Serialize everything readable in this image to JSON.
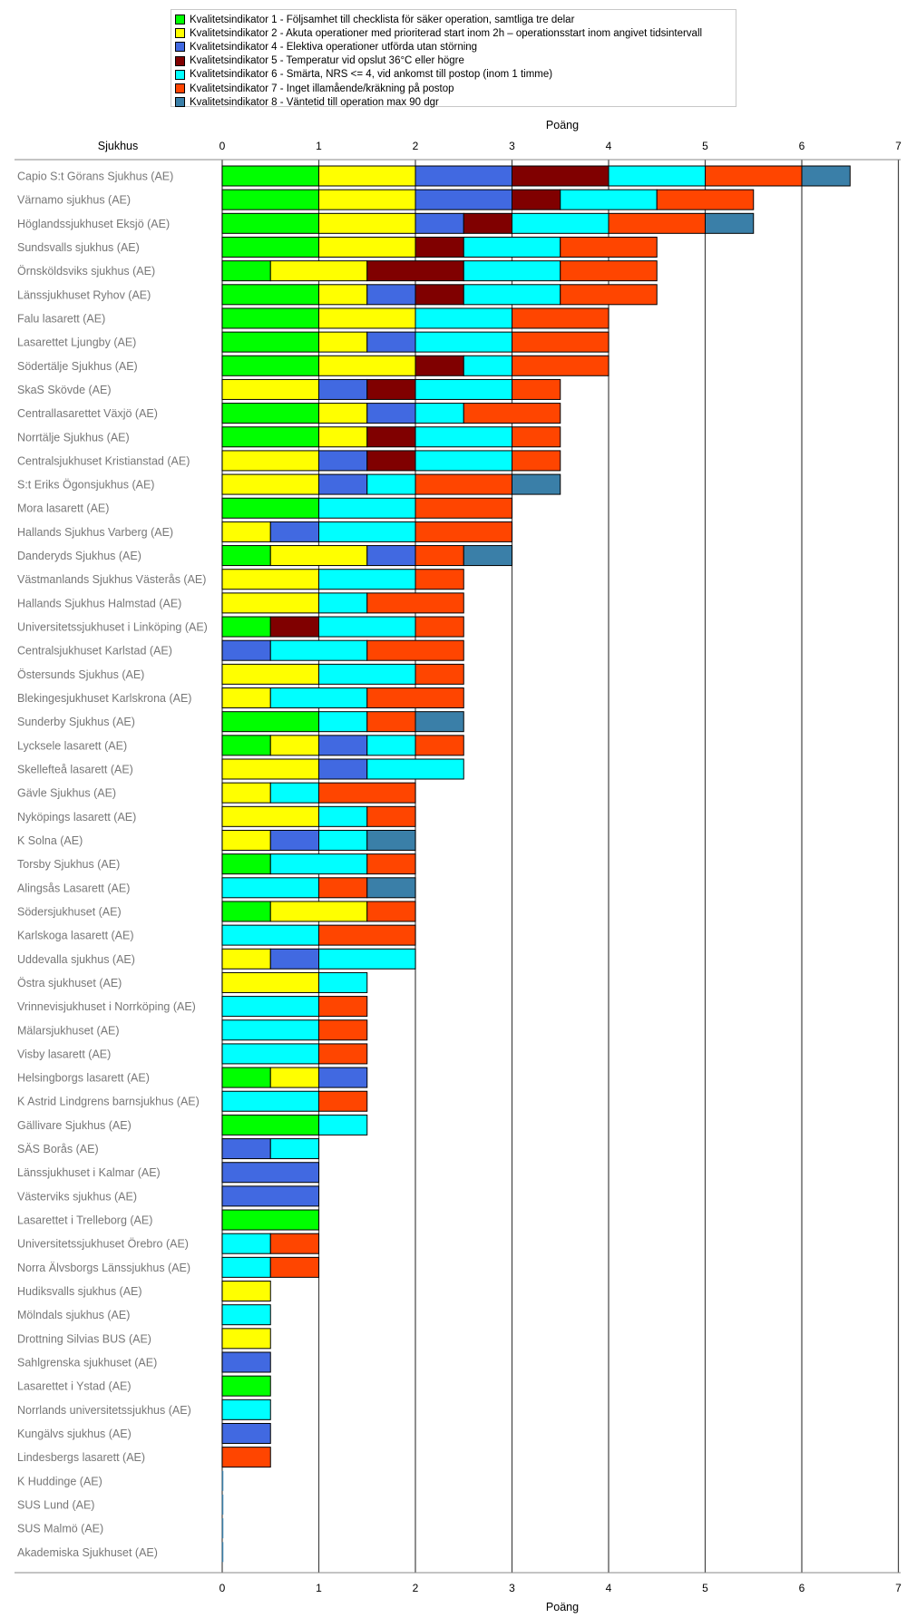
{
  "chart_data": {
    "type": "bar",
    "stacked": true,
    "orientation": "horizontal",
    "category_axis_label": "Sjukhus",
    "xlabel": "Poäng",
    "xlim": [
      0,
      7
    ],
    "xticks": [
      0,
      1,
      2,
      3,
      4,
      5,
      6,
      7
    ],
    "grid": "vertical",
    "legend_position": "top",
    "series": [
      {
        "name": "Kvalitetsindikator 1 - Följsamhet till checklista för säker operation, samtliga tre delar",
        "color": "#00FF00"
      },
      {
        "name": "Kvalitetsindikator 2 - Akuta operationer med prioriterad start inom 2h – operationsstart inom angivet tidsintervall",
        "color": "#FFFF00"
      },
      {
        "name": "Kvalitetsindikator 4 - Elektiva operationer utförda utan störning",
        "color": "#4169E1"
      },
      {
        "name": "Kvalitetsindikator 5 - Temperatur vid opslut 36°C eller högre",
        "color": "#800000"
      },
      {
        "name": "Kvalitetsindikator 6 - Smärta, NRS <= 4, vid ankomst till postop (inom 1 timme)",
        "color": "#00FFFF"
      },
      {
        "name": "Kvalitetsindikator 7 - Inget illamående/kräkning på postop",
        "color": "#FF4500"
      },
      {
        "name": "Kvalitetsindikator 8 - Väntetid till operation max 90 dgr",
        "color": "#3A7FA8"
      }
    ],
    "categories": [
      {
        "name": "Capio S:t Görans Sjukhus (AE)",
        "values": [
          1,
          1,
          1,
          1,
          1,
          1,
          0.5
        ]
      },
      {
        "name": "Värnamo sjukhus (AE)",
        "values": [
          1,
          1,
          1,
          0.5,
          1,
          1,
          0
        ]
      },
      {
        "name": "Höglandssjukhuset Eksjö (AE)",
        "values": [
          1,
          1,
          0.5,
          0.5,
          1,
          1,
          0.5
        ]
      },
      {
        "name": "Sundsvalls sjukhus (AE)",
        "values": [
          1,
          1,
          0,
          0.5,
          1,
          1,
          0
        ]
      },
      {
        "name": "Örnsköldsviks sjukhus (AE)",
        "values": [
          0.5,
          1,
          0,
          1,
          1,
          1,
          0
        ]
      },
      {
        "name": "Länssjukhuset Ryhov (AE)",
        "values": [
          1,
          0.5,
          0.5,
          0.5,
          1,
          1,
          0
        ]
      },
      {
        "name": "Falu lasarett (AE)",
        "values": [
          1,
          1,
          0,
          0,
          1,
          1,
          0
        ]
      },
      {
        "name": "Lasarettet Ljungby (AE)",
        "values": [
          1,
          0.5,
          0.5,
          0,
          1,
          1,
          0
        ]
      },
      {
        "name": "Södertälje Sjukhus (AE)",
        "values": [
          1,
          1,
          0,
          0.5,
          0.5,
          1,
          0
        ]
      },
      {
        "name": "SkaS Skövde (AE)",
        "values": [
          0,
          1,
          0.5,
          0.5,
          1,
          0.5,
          0
        ]
      },
      {
        "name": "Centrallasarettet Växjö (AE)",
        "values": [
          1,
          0.5,
          0.5,
          0,
          0.5,
          1,
          0
        ]
      },
      {
        "name": "Norrtälje Sjukhus (AE)",
        "values": [
          1,
          0.5,
          0,
          0.5,
          1,
          0.5,
          0
        ]
      },
      {
        "name": "Centralsjukhuset Kristianstad (AE)",
        "values": [
          0,
          1,
          0.5,
          0.5,
          1,
          0.5,
          0
        ]
      },
      {
        "name": "S:t Eriks Ögonsjukhus (AE)",
        "values": [
          0,
          1,
          0.5,
          0,
          0.5,
          1,
          0.5
        ]
      },
      {
        "name": "Mora lasarett (AE)",
        "values": [
          1,
          0,
          0,
          0,
          1,
          1,
          0
        ]
      },
      {
        "name": "Hallands Sjukhus Varberg (AE)",
        "values": [
          0,
          0.5,
          0.5,
          0,
          1,
          1,
          0
        ]
      },
      {
        "name": "Danderyds Sjukhus (AE)",
        "values": [
          0.5,
          1,
          0.5,
          0,
          0,
          0.5,
          0.5
        ]
      },
      {
        "name": "Västmanlands Sjukhus Västerås (AE)",
        "values": [
          0,
          1,
          0,
          0,
          1,
          0.5,
          0
        ]
      },
      {
        "name": "Hallands Sjukhus Halmstad (AE)",
        "values": [
          0,
          1,
          0,
          0,
          0.5,
          1,
          0
        ]
      },
      {
        "name": "Universitetssjukhuset i Linköping (AE)",
        "values": [
          0.5,
          0,
          0,
          0.5,
          1,
          0.5,
          0
        ]
      },
      {
        "name": "Centralsjukhuset Karlstad (AE)",
        "values": [
          0,
          0,
          0.5,
          0,
          1,
          1,
          0
        ]
      },
      {
        "name": "Östersunds Sjukhus (AE)",
        "values": [
          0,
          1,
          0,
          0,
          1,
          0.5,
          0
        ]
      },
      {
        "name": "Blekingesjukhuset Karlskrona (AE)",
        "values": [
          0,
          0.5,
          0,
          0,
          1,
          1,
          0
        ]
      },
      {
        "name": "Sunderby Sjukhus (AE)",
        "values": [
          1,
          0,
          0,
          0,
          0.5,
          0.5,
          0.5
        ]
      },
      {
        "name": "Lycksele lasarett (AE)",
        "values": [
          0.5,
          0.5,
          0.5,
          0,
          0.5,
          0.5,
          0
        ]
      },
      {
        "name": "Skellefteå lasarett (AE)",
        "values": [
          0,
          1,
          0.5,
          0,
          1,
          0,
          0
        ]
      },
      {
        "name": "Gävle Sjukhus (AE)",
        "values": [
          0,
          0.5,
          0,
          0,
          0.5,
          1,
          0
        ]
      },
      {
        "name": "Nyköpings lasarett (AE)",
        "values": [
          0,
          1,
          0,
          0,
          0.5,
          0.5,
          0
        ]
      },
      {
        "name": "K Solna (AE)",
        "values": [
          0,
          0.5,
          0.5,
          0,
          0.5,
          0,
          0.5
        ]
      },
      {
        "name": "Torsby Sjukhus (AE)",
        "values": [
          0.5,
          0,
          0,
          0,
          1,
          0.5,
          0
        ]
      },
      {
        "name": "Alingsås Lasarett (AE)",
        "values": [
          0,
          0,
          0,
          0,
          1,
          0.5,
          0.5
        ]
      },
      {
        "name": "Södersjukhuset (AE)",
        "values": [
          0.5,
          1,
          0,
          0,
          0,
          0.5,
          0
        ]
      },
      {
        "name": "Karlskoga lasarett (AE)",
        "values": [
          0,
          0,
          0,
          0,
          1,
          1,
          0
        ]
      },
      {
        "name": "Uddevalla sjukhus (AE)",
        "values": [
          0,
          0.5,
          0.5,
          0,
          1,
          0,
          0
        ]
      },
      {
        "name": "Östra sjukhuset (AE)",
        "values": [
          0,
          1,
          0,
          0,
          0.5,
          0,
          0
        ]
      },
      {
        "name": "Vrinnevisjukhuset i Norrköping (AE)",
        "values": [
          0,
          0,
          0,
          0,
          1,
          0.5,
          0
        ]
      },
      {
        "name": "Mälarsjukhuset (AE)",
        "values": [
          0,
          0,
          0,
          0,
          1,
          0.5,
          0
        ]
      },
      {
        "name": "Visby lasarett (AE)",
        "values": [
          0,
          0,
          0,
          0,
          1,
          0.5,
          0
        ]
      },
      {
        "name": "Helsingborgs lasarett (AE)",
        "values": [
          0.5,
          0.5,
          0.5,
          0,
          0,
          0,
          0
        ]
      },
      {
        "name": "K Astrid Lindgrens barnsjukhus (AE)",
        "values": [
          0,
          0,
          0,
          0,
          1,
          0.5,
          0
        ]
      },
      {
        "name": "Gällivare Sjukhus (AE)",
        "values": [
          1,
          0,
          0,
          0,
          0.5,
          0,
          0
        ]
      },
      {
        "name": "SÄS Borås (AE)",
        "values": [
          0,
          0,
          0.5,
          0,
          0.5,
          0,
          0
        ]
      },
      {
        "name": "Länssjukhuset i Kalmar (AE)",
        "values": [
          0,
          0,
          1,
          0,
          0,
          0,
          0
        ]
      },
      {
        "name": "Västerviks sjukhus (AE)",
        "values": [
          0,
          0,
          1,
          0,
          0,
          0,
          0
        ]
      },
      {
        "name": "Lasarettet i Trelleborg (AE)",
        "values": [
          1,
          0,
          0,
          0,
          0,
          0,
          0
        ]
      },
      {
        "name": "Universitetssjukhuset Örebro (AE)",
        "values": [
          0,
          0,
          0,
          0,
          0.5,
          0.5,
          0
        ]
      },
      {
        "name": "Norra Älvsborgs Länssjukhus (AE)",
        "values": [
          0,
          0,
          0,
          0,
          0.5,
          0.5,
          0
        ]
      },
      {
        "name": "Hudiksvalls sjukhus (AE)",
        "values": [
          0,
          0.5,
          0,
          0,
          0,
          0,
          0
        ]
      },
      {
        "name": "Mölndals sjukhus (AE)",
        "values": [
          0,
          0,
          0,
          0,
          0.5,
          0,
          0
        ]
      },
      {
        "name": "Drottning Silvias BUS (AE)",
        "values": [
          0,
          0.5,
          0,
          0,
          0,
          0,
          0
        ]
      },
      {
        "name": "Sahlgrenska sjukhuset (AE)",
        "values": [
          0,
          0,
          0.5,
          0,
          0,
          0,
          0
        ]
      },
      {
        "name": "Lasarettet i Ystad (AE)",
        "values": [
          0.5,
          0,
          0,
          0,
          0,
          0,
          0
        ]
      },
      {
        "name": "Norrlands universitetssjukhus (AE)",
        "values": [
          0,
          0,
          0,
          0,
          0.5,
          0,
          0
        ]
      },
      {
        "name": "Kungälvs sjukhus (AE)",
        "values": [
          0,
          0,
          0.5,
          0,
          0,
          0,
          0
        ]
      },
      {
        "name": "Lindesbergs lasarett (AE)",
        "values": [
          0,
          0,
          0,
          0,
          0,
          0.5,
          0
        ]
      },
      {
        "name": "K Huddinge (AE)",
        "values": [
          0,
          0,
          0,
          0,
          0,
          0,
          0
        ]
      },
      {
        "name": "SUS Lund (AE)",
        "values": [
          0,
          0,
          0,
          0,
          0,
          0,
          0
        ]
      },
      {
        "name": "SUS Malmö (AE)",
        "values": [
          0,
          0,
          0,
          0,
          0,
          0,
          0
        ]
      },
      {
        "name": "Akademiska Sjukhuset (AE)",
        "values": [
          0,
          0,
          0,
          0,
          0,
          0,
          0
        ]
      }
    ]
  }
}
